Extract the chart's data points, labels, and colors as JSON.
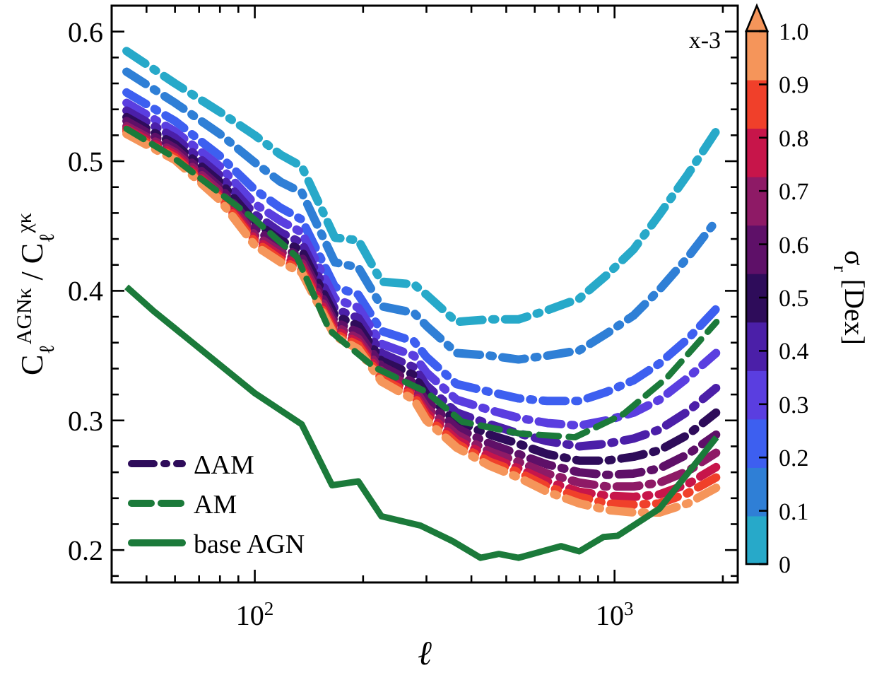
{
  "chart_data": {
    "type": "line",
    "xlabel": "ℓ",
    "ylabel": "C$_{ℓ}$$^{AGNκ}$ / C$_{ℓ}$$^{χκ}$",
    "clabel": "σ$_{r}$ [Dex]",
    "annotations": [
      "x-3"
    ],
    "log": "x",
    "grid": false,
    "legend": "bottom left",
    "marker": "none",
    "xlim": [
      40,
      2200
    ],
    "ylim": [
      0.175,
      0.62
    ],
    "clim": [
      0,
      1
    ],
    "xticks": [
      {
        "value": 50,
        "label": null
      },
      {
        "value": 60,
        "label": null
      },
      {
        "value": 70,
        "label": null
      },
      {
        "value": 80,
        "label": null
      },
      {
        "value": 90,
        "label": null
      },
      {
        "value": 100,
        "label": "10$^{2}$"
      },
      {
        "value": 200,
        "label": null
      },
      {
        "value": 300,
        "label": null
      },
      {
        "value": 400,
        "label": null
      },
      {
        "value": 500,
        "label": null
      },
      {
        "value": 600,
        "label": null
      },
      {
        "value": 700,
        "label": null
      },
      {
        "value": 800,
        "label": null
      },
      {
        "value": 900,
        "label": null
      },
      {
        "value": 1000,
        "label": "10$^{3}$"
      },
      {
        "value": 2000,
        "label": null
      }
    ],
    "yticks": [
      {
        "value": 0.18,
        "label": null
      },
      0.2,
      {
        "value": 0.22,
        "label": null
      },
      {
        "value": 0.24,
        "label": null
      },
      {
        "value": 0.26,
        "label": null
      },
      {
        "value": 0.28,
        "label": null
      },
      0.3,
      {
        "value": 0.32,
        "label": null
      },
      {
        "value": 0.34,
        "label": null
      },
      {
        "value": 0.36,
        "label": null
      },
      {
        "value": 0.38,
        "label": null
      },
      0.4,
      {
        "value": 0.42,
        "label": null
      },
      {
        "value": 0.44,
        "label": null
      },
      {
        "value": 0.46,
        "label": null
      },
      {
        "value": 0.48,
        "label": null
      },
      0.5,
      {
        "value": 0.52,
        "label": null
      },
      {
        "value": 0.54,
        "label": null
      },
      {
        "value": 0.56,
        "label": null
      },
      {
        "value": 0.58,
        "label": null
      },
      0.6
    ],
    "cticks": [
      0,
      0.1,
      0.2,
      0.3,
      0.4,
      0.5,
      0.6,
      0.7,
      0.8,
      0.9,
      {
        "value": 1,
        "label": "1.0"
      }
    ],
    "x": [
      44,
      60,
      80,
      100,
      118,
      135,
      167,
      194,
      225,
      277,
      300,
      364,
      450,
      541,
      650,
      798,
      950,
      1130,
      1334,
      1600,
      1915
    ],
    "series": [
      {
        "color": "#27a9c9",
        "line_style": "dashdot",
        "values": [
          0.585,
          0.56,
          0.538,
          0.52,
          0.505,
          0.496,
          0.441,
          0.439,
          0.407,
          0.405,
          0.397,
          0.376,
          0.378,
          0.378,
          0.385,
          0.394,
          0.412,
          0.432,
          0.459,
          0.49,
          0.523
        ]
      },
      {
        "color": "#2f7fd6",
        "line_style": "dashdot",
        "values": [
          0.569,
          0.545,
          0.521,
          0.499,
          0.484,
          0.476,
          0.422,
          0.418,
          0.388,
          0.383,
          0.373,
          0.352,
          0.35,
          0.347,
          0.35,
          0.354,
          0.367,
          0.381,
          0.401,
          0.426,
          0.454
        ]
      },
      {
        "color": "#3d5ff0",
        "line_style": "dashdot",
        "values": [
          0.553,
          0.531,
          0.504,
          0.478,
          0.464,
          0.455,
          0.403,
          0.397,
          0.369,
          0.361,
          0.349,
          0.328,
          0.322,
          0.317,
          0.315,
          0.315,
          0.322,
          0.331,
          0.344,
          0.363,
          0.386
        ]
      },
      {
        "color": "#5a3ee0",
        "line_style": "dashdot",
        "values": [
          0.545,
          0.523,
          0.496,
          0.467,
          0.454,
          0.445,
          0.394,
          0.387,
          0.359,
          0.35,
          0.337,
          0.316,
          0.308,
          0.302,
          0.298,
          0.296,
          0.3,
          0.306,
          0.316,
          0.333,
          0.352
        ]
      },
      {
        "color": "#4b1fa8",
        "line_style": "dashdot",
        "values": [
          0.539,
          0.518,
          0.489,
          0.459,
          0.445,
          0.437,
          0.386,
          0.379,
          0.352,
          0.341,
          0.327,
          0.306,
          0.297,
          0.29,
          0.284,
          0.28,
          0.282,
          0.286,
          0.293,
          0.307,
          0.325
        ]
      },
      {
        "name": "ΔAM",
        "color": "#2e0c5a",
        "line_style": "dashdot",
        "values": [
          0.534,
          0.513,
          0.484,
          0.453,
          0.439,
          0.431,
          0.381,
          0.373,
          0.346,
          0.335,
          0.32,
          0.299,
          0.289,
          0.282,
          0.274,
          0.269,
          0.269,
          0.272,
          0.277,
          0.289,
          0.306
        ]
      },
      {
        "color": "#5e1068",
        "line_style": "dashdot",
        "values": [
          0.531,
          0.51,
          0.48,
          0.448,
          0.434,
          0.426,
          0.376,
          0.368,
          0.342,
          0.329,
          0.315,
          0.294,
          0.282,
          0.274,
          0.266,
          0.26,
          0.258,
          0.259,
          0.263,
          0.274,
          0.289
        ]
      },
      {
        "color": "#8e1a66",
        "line_style": "dashdot",
        "values": [
          0.527,
          0.507,
          0.477,
          0.443,
          0.43,
          0.422,
          0.373,
          0.363,
          0.338,
          0.325,
          0.31,
          0.289,
          0.276,
          0.268,
          0.259,
          0.252,
          0.249,
          0.249,
          0.252,
          0.261,
          0.275
        ]
      },
      {
        "color": "#c7154a",
        "line_style": "dashdot",
        "values": [
          0.525,
          0.505,
          0.474,
          0.44,
          0.427,
          0.419,
          0.37,
          0.36,
          0.335,
          0.321,
          0.306,
          0.285,
          0.272,
          0.263,
          0.253,
          0.245,
          0.242,
          0.241,
          0.243,
          0.251,
          0.264
        ]
      },
      {
        "color": "#f0402a",
        "line_style": "dashdot",
        "values": [
          0.523,
          0.503,
          0.472,
          0.438,
          0.424,
          0.416,
          0.367,
          0.358,
          0.332,
          0.319,
          0.303,
          0.282,
          0.268,
          0.26,
          0.249,
          0.241,
          0.236,
          0.235,
          0.236,
          0.244,
          0.256
        ]
      },
      {
        "color": "#f5955a",
        "line_style": "dashdot",
        "values": [
          0.521,
          0.501,
          0.47,
          0.435,
          0.422,
          0.414,
          0.365,
          0.355,
          0.33,
          0.316,
          0.3,
          0.279,
          0.265,
          0.256,
          0.245,
          0.236,
          0.231,
          0.229,
          0.229,
          0.236,
          0.248
        ]
      },
      {
        "name": "AM",
        "color": "#1b7a3a",
        "line_style": "dashed",
        "x": [
          44,
          58,
          76,
          100,
          131,
          161,
          172,
          215,
          300,
          377,
          541,
          776,
          1060,
          1400,
          1920
        ],
        "values": [
          0.525,
          0.505,
          0.48,
          0.455,
          0.426,
          0.37,
          0.363,
          0.341,
          0.322,
          0.299,
          0.29,
          0.287,
          0.305,
          0.333,
          0.376
        ]
      },
      {
        "name": "base AGN",
        "color": "#1b7a3a",
        "line_style": "solid",
        "x": [
          44,
          52,
          100,
          135,
          164,
          194,
          225,
          288,
          354,
          424,
          477,
          541,
          710,
          798,
          930,
          1020,
          1334,
          1920
        ],
        "values": [
          0.403,
          0.385,
          0.321,
          0.297,
          0.25,
          0.253,
          0.226,
          0.219,
          0.207,
          0.194,
          0.197,
          0.194,
          0.203,
          0.199,
          0.21,
          0.211,
          0.232,
          0.287
        ]
      }
    ]
  }
}
